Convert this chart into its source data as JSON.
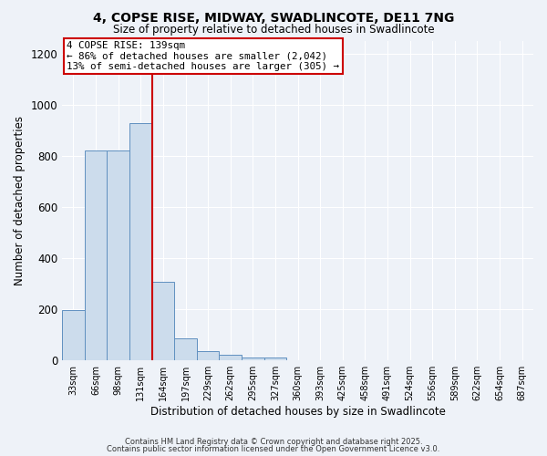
{
  "title1": "4, COPSE RISE, MIDWAY, SWADLINCOTE, DE11 7NG",
  "title2": "Size of property relative to detached houses in Swadlincote",
  "xlabel": "Distribution of detached houses by size in Swadlincote",
  "ylabel": "Number of detached properties",
  "categories": [
    "33sqm",
    "66sqm",
    "98sqm",
    "131sqm",
    "164sqm",
    "197sqm",
    "229sqm",
    "262sqm",
    "295sqm",
    "327sqm",
    "360sqm",
    "393sqm",
    "425sqm",
    "458sqm",
    "491sqm",
    "524sqm",
    "556sqm",
    "589sqm",
    "622sqm",
    "654sqm",
    "687sqm"
  ],
  "values": [
    195,
    820,
    820,
    930,
    305,
    85,
    35,
    20,
    10,
    10,
    0,
    0,
    0,
    0,
    0,
    0,
    0,
    0,
    0,
    0,
    0
  ],
  "bar_color": "#ccdcec",
  "bar_edge_color": "#6090c0",
  "red_line_index": 3.5,
  "annotation_title": "4 COPSE RISE: 139sqm",
  "annotation_line1": "← 86% of detached houses are smaller (2,042)",
  "annotation_line2": "13% of semi-detached houses are larger (305) →",
  "annotation_box_color": "#ffffff",
  "annotation_box_edge": "#cc0000",
  "ylim": [
    0,
    1250
  ],
  "yticks": [
    0,
    200,
    400,
    600,
    800,
    1000,
    1200
  ],
  "background_color": "#eef2f8",
  "grid_color": "#ffffff",
  "footer1": "Contains HM Land Registry data © Crown copyright and database right 2025.",
  "footer2": "Contains public sector information licensed under the Open Government Licence v3.0."
}
